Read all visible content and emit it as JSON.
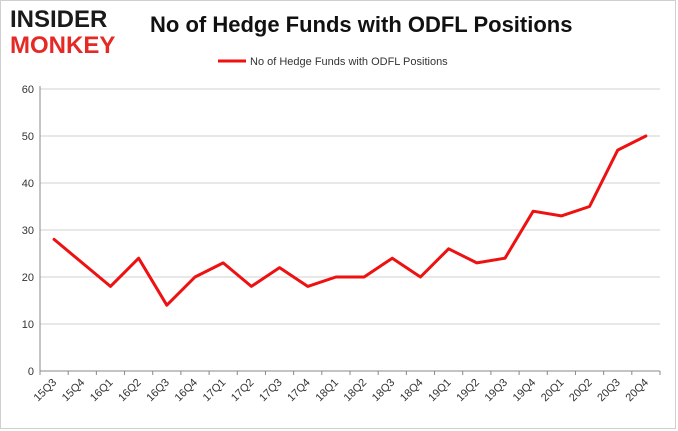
{
  "brand": {
    "line1": "INSIDER",
    "line2": "MONKEY"
  },
  "colors": {
    "line": "#ee1111",
    "grid": "#d0d0d0",
    "brand_red": "#e52a26"
  },
  "chart_data": {
    "type": "line",
    "title": "No of Hedge Funds with ODFL Positions",
    "legend": "top-center",
    "grid": true,
    "ylim": [
      0,
      60
    ],
    "yticks": [
      0,
      10,
      20,
      30,
      40,
      50,
      60
    ],
    "categories": [
      "15Q3",
      "15Q4",
      "16Q1",
      "16Q2",
      "16Q3",
      "16Q4",
      "17Q1",
      "17Q2",
      "17Q3",
      "17Q4",
      "18Q1",
      "18Q2",
      "18Q3",
      "18Q4",
      "19Q1",
      "19Q2",
      "19Q3",
      "19Q4",
      "20Q1",
      "20Q2",
      "20Q3",
      "20Q4"
    ],
    "series": [
      {
        "name": "No of Hedge Funds with ODFL Positions",
        "values": [
          28,
          23,
          18,
          24,
          14,
          20,
          23,
          18,
          22,
          18,
          20,
          20,
          24,
          20,
          26,
          23,
          24,
          34,
          33,
          35,
          47,
          50
        ]
      }
    ]
  }
}
